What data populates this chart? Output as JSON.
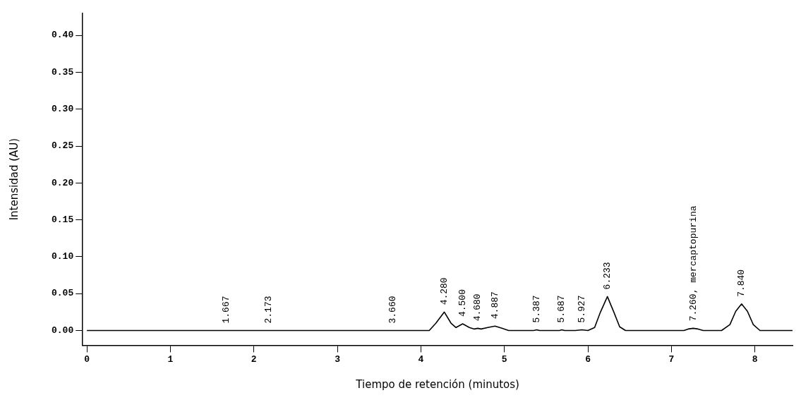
{
  "chart_data": {
    "type": "line",
    "xlabel": "Tiempo de retención (minutos)",
    "ylabel": "Intensidad (AU)",
    "x": [
      0,
      1.0,
      1.5,
      2.35,
      3.6,
      4.1,
      4.18,
      4.28,
      4.36,
      4.42,
      4.5,
      4.58,
      4.64,
      4.68,
      4.72,
      4.8,
      4.887,
      4.97,
      5.05,
      5.35,
      5.387,
      5.42,
      5.66,
      5.687,
      5.72,
      5.85,
      5.927,
      6.0,
      6.08,
      6.15,
      6.233,
      6.31,
      6.38,
      6.45,
      7.15,
      7.2,
      7.26,
      7.32,
      7.38,
      7.6,
      7.7,
      7.77,
      7.84,
      7.91,
      7.98,
      8.06,
      8.45
    ],
    "series": [
      {
        "color": "#000000",
        "values": [
          0,
          0,
          0,
          0,
          0,
          0,
          0.01,
          0.025,
          0.01,
          0.004,
          0.009,
          0.004,
          0.002,
          0.003,
          0.002,
          0.004,
          0.006,
          0.003,
          0,
          0,
          0.001,
          0,
          0,
          0.001,
          0,
          0,
          0.001,
          0,
          0.004,
          0.025,
          0.046,
          0.025,
          0.005,
          0,
          0,
          0.002,
          0.003,
          0.002,
          0,
          0,
          0.008,
          0.026,
          0.036,
          0.026,
          0.008,
          0,
          0
        ]
      }
    ],
    "xlim": [
      -0.05,
      8.45
    ],
    "xticks": [
      0,
      1,
      2,
      3,
      4,
      5,
      6,
      7,
      8
    ],
    "ylim": [
      -0.02,
      0.43
    ],
    "yticks": [
      {
        "value": 0,
        "label": "0.00"
      },
      {
        "value": 0.05,
        "label": "0.05"
      },
      {
        "value": 0.1,
        "label": "0.10"
      },
      {
        "value": 0.15,
        "label": "0.15"
      },
      {
        "value": 0.2,
        "label": "0.20"
      },
      {
        "value": 0.25,
        "label": "0.25"
      },
      {
        "value": 0.3,
        "label": "0.30"
      },
      {
        "value": 0.35,
        "label": "0.35"
      },
      {
        "value": 0.4,
        "label": "0.40"
      }
    ],
    "grid": false,
    "legend": false,
    "marker": "none",
    "line_style": "solid",
    "annotations": [
      {
        "text": "1.667",
        "x": 1.667,
        "y": 0
      },
      {
        "text": "2.173",
        "x": 2.173,
        "y": 0
      },
      {
        "text": "3.660",
        "x": 3.66,
        "y": 0
      },
      {
        "text": "4.280",
        "x": 4.28,
        "y": 0.025
      },
      {
        "text": "4.500",
        "x": 4.5,
        "y": 0.009
      },
      {
        "text": "4.680",
        "x": 4.68,
        "y": 0.003
      },
      {
        "text": "4.887",
        "x": 4.887,
        "y": 0.006
      },
      {
        "text": "5.387",
        "x": 5.387,
        "y": 0.001
      },
      {
        "text": "5.687",
        "x": 5.687,
        "y": 0.001
      },
      {
        "text": "5.927",
        "x": 5.927,
        "y": 0.001
      },
      {
        "text": "6.233",
        "x": 6.233,
        "y": 0.046
      },
      {
        "text": "7.260, mercaptopurina",
        "x": 7.26,
        "y": 0.003
      },
      {
        "text": "7.840",
        "x": 7.84,
        "y": 0.036
      }
    ]
  }
}
